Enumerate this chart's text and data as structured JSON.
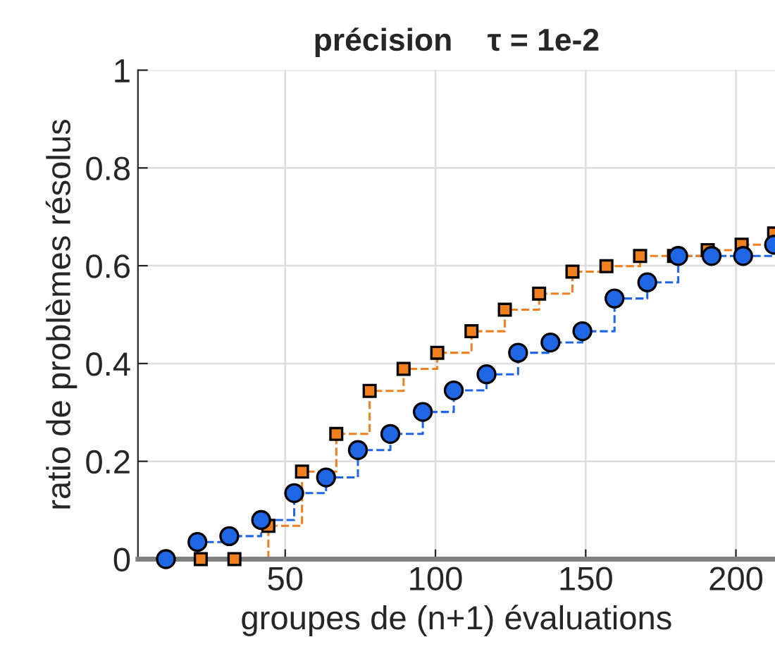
{
  "chart_data": {
    "type": "step",
    "title": "précision    τ = 1e-2",
    "xlabel": "groupes de (n+1) évaluations",
    "ylabel": "ratio de problèmes résolus",
    "series": [
      {
        "color": "#1f66e5",
        "marker": "circle",
        "x": [
          10.3,
          20.8,
          31.4,
          42,
          53,
          63.6,
          74.2,
          85,
          95.8,
          106.1,
          117,
          127.5,
          138.3,
          148.9,
          159.6,
          170.5,
          180.8,
          191.9,
          202.4,
          212.7
        ],
        "values": [
          0,
          0.035,
          0.047,
          0.08,
          0.135,
          0.167,
          0.223,
          0.256,
          0.301,
          0.345,
          0.378,
          0.422,
          0.443,
          0.466,
          0.533,
          0.566,
          0.62,
          0.62,
          0.62,
          0.643
        ]
      },
      {
        "color": "#f07f1e",
        "marker": "square",
        "x": [
          10.3,
          21.9,
          33.1,
          44.4,
          55.6,
          67,
          78.1,
          89.4,
          100.6,
          112,
          123.1,
          134.5,
          145.6,
          156.9,
          168.1,
          179.4,
          190.6,
          201.9,
          212.7
        ],
        "values": [
          0,
          0,
          0,
          0.068,
          0.179,
          0.256,
          0.344,
          0.389,
          0.422,
          0.466,
          0.51,
          0.543,
          0.588,
          0.599,
          0.62,
          0.62,
          0.632,
          0.643,
          0.666
        ]
      }
    ],
    "line_style": "dashed",
    "grid": true,
    "legend": false,
    "xlim": [
      1,
      213
    ],
    "xticks": [
      50,
      100,
      150,
      200
    ],
    "ylim": [
      0,
      1
    ],
    "yticks": [
      0,
      0.2,
      0.4,
      0.6,
      0.8,
      1
    ]
  }
}
